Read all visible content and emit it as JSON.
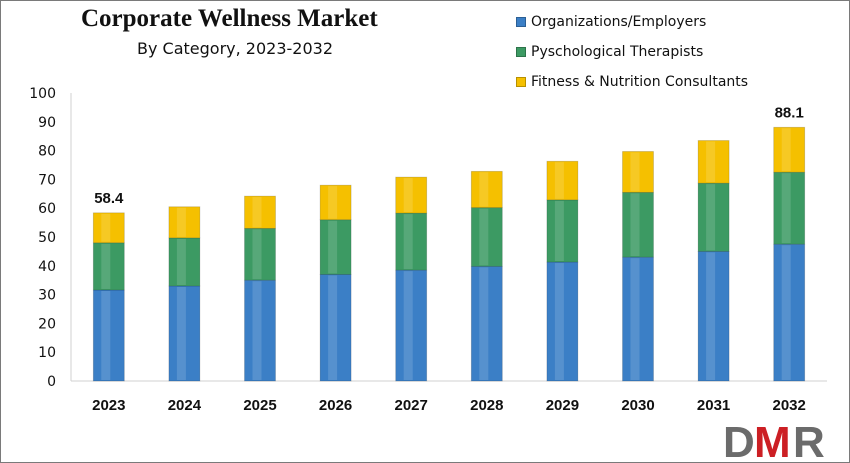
{
  "chart_data": {
    "type": "bar",
    "stacked": true,
    "title": "Corporate Wellness Market",
    "subtitle": "By Category, 2023-2032",
    "categories": [
      "2023",
      "2024",
      "2025",
      "2026",
      "2027",
      "2028",
      "2029",
      "2030",
      "2031",
      "2032"
    ],
    "series": [
      {
        "name": "Organizations/Employers",
        "color": "#3b7fc6",
        "values": [
          31.6,
          33.0,
          35.0,
          37.0,
          38.5,
          39.8,
          41.3,
          43.0,
          45.0,
          47.5
        ]
      },
      {
        "name": "Pyschological Therapists",
        "color": "#3c9a63",
        "values": [
          16.4,
          16.7,
          18.0,
          19.0,
          19.8,
          20.4,
          21.6,
          22.5,
          23.7,
          25.0
        ]
      },
      {
        "name": "Fitness & Nutrition Consultants",
        "color": "#f5c000",
        "values": [
          10.4,
          10.8,
          11.2,
          12.0,
          12.5,
          12.6,
          13.4,
          14.2,
          14.8,
          15.6
        ]
      }
    ],
    "annotations": [
      {
        "category": "2023",
        "text": "58.4"
      },
      {
        "category": "2032",
        "text": "88.1"
      }
    ],
    "ylim": [
      0,
      100
    ],
    "yticks": [
      0,
      10,
      20,
      30,
      40,
      50,
      60,
      70,
      80,
      90,
      100
    ],
    "xlabel": "",
    "ylabel": "",
    "grid": false,
    "legend_position": "top-right"
  },
  "logo": {
    "text": "DMR",
    "colors": [
      "#6b6b6b",
      "#cc1f24"
    ]
  }
}
